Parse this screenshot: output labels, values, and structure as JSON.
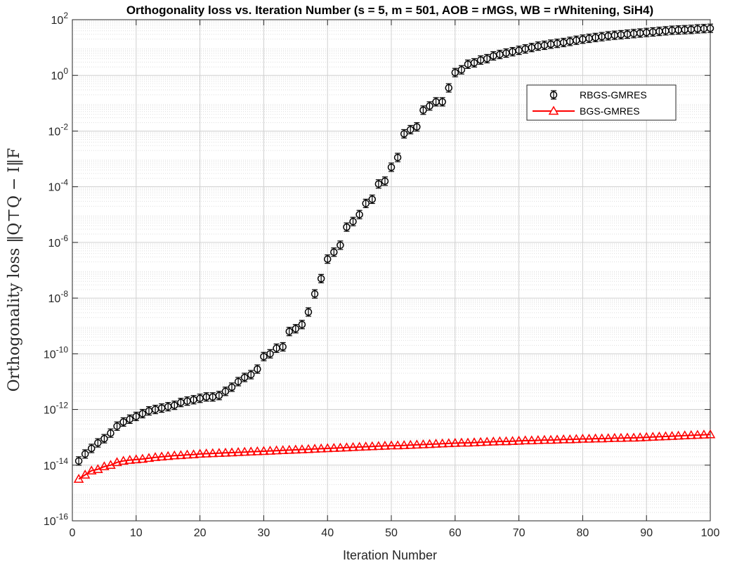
{
  "chart_data": {
    "type": "line",
    "title": "Orthogonality loss vs. Iteration Number (s = 5, m = 501, AOB = rMGS, WB = rWhitening, SiH4)",
    "xlabel": "Iteration Number",
    "ylabel": "Orthogonality loss ‖Q⊤Q − I‖F",
    "xlim": [
      0,
      100
    ],
    "ylim": [
      1e-16,
      100
    ],
    "yscale": "log",
    "grid": true,
    "legend_position": "top-right",
    "x_ticks": [
      0,
      10,
      20,
      30,
      40,
      50,
      60,
      70,
      80,
      90,
      100
    ],
    "y_ticks": [
      {
        "base": "10",
        "exp": "-16"
      },
      {
        "base": "10",
        "exp": "-14"
      },
      {
        "base": "10",
        "exp": "-12"
      },
      {
        "base": "10",
        "exp": "-10"
      },
      {
        "base": "10",
        "exp": "-8"
      },
      {
        "base": "10",
        "exp": "-6"
      },
      {
        "base": "10",
        "exp": "-4"
      },
      {
        "base": "10",
        "exp": "-2"
      },
      {
        "base": "10",
        "exp": "0"
      },
      {
        "base": "10",
        "exp": "2"
      }
    ],
    "x": [
      1,
      2,
      3,
      4,
      5,
      6,
      7,
      8,
      9,
      10,
      11,
      12,
      13,
      14,
      15,
      16,
      17,
      18,
      19,
      20,
      21,
      22,
      23,
      24,
      25,
      26,
      27,
      28,
      29,
      30,
      31,
      32,
      33,
      34,
      35,
      36,
      37,
      38,
      39,
      40,
      41,
      42,
      43,
      44,
      45,
      46,
      47,
      48,
      49,
      50,
      51,
      52,
      53,
      54,
      55,
      56,
      57,
      58,
      59,
      60,
      61,
      62,
      63,
      64,
      65,
      66,
      67,
      68,
      69,
      70,
      71,
      72,
      73,
      74,
      75,
      76,
      77,
      78,
      79,
      80,
      81,
      82,
      83,
      84,
      85,
      86,
      87,
      88,
      89,
      90,
      91,
      92,
      93,
      94,
      95,
      96,
      97,
      98,
      99,
      100
    ],
    "series": [
      {
        "name": "RBGS-GMRES",
        "color": "#000000",
        "marker": "circle-errorbar",
        "log10_values": [
          -13.85,
          -13.6,
          -13.4,
          -13.2,
          -13.05,
          -12.85,
          -12.6,
          -12.45,
          -12.35,
          -12.25,
          -12.15,
          -12.05,
          -12.0,
          -11.95,
          -11.9,
          -11.85,
          -11.75,
          -11.7,
          -11.65,
          -11.6,
          -11.55,
          -11.55,
          -11.5,
          -11.35,
          -11.2,
          -11.0,
          -10.85,
          -10.75,
          -10.55,
          -10.1,
          -10.0,
          -9.8,
          -9.75,
          -9.2,
          -9.1,
          -8.95,
          -8.5,
          -7.85,
          -7.3,
          -6.6,
          -6.35,
          -6.1,
          -5.45,
          -5.25,
          -5.0,
          -4.6,
          -4.45,
          -3.9,
          -3.8,
          -3.3,
          -2.95,
          -2.1,
          -1.95,
          -1.85,
          -1.25,
          -1.1,
          -0.95,
          -0.95,
          -0.45,
          0.1,
          0.2,
          0.4,
          0.45,
          0.55,
          0.6,
          0.7,
          0.75,
          0.8,
          0.85,
          0.9,
          0.95,
          1.0,
          1.05,
          1.08,
          1.12,
          1.15,
          1.18,
          1.22,
          1.26,
          1.3,
          1.33,
          1.36,
          1.39,
          1.42,
          1.44,
          1.46,
          1.48,
          1.5,
          1.52,
          1.54,
          1.56,
          1.58,
          1.6,
          1.62,
          1.63,
          1.64,
          1.65,
          1.67,
          1.68,
          1.69
        ]
      },
      {
        "name": "BGS-GMRES",
        "color": "#ff0000",
        "marker": "triangle",
        "log10_values": [
          -14.5,
          -14.35,
          -14.2,
          -14.15,
          -14.05,
          -14.0,
          -13.9,
          -13.85,
          -13.82,
          -13.8,
          -13.78,
          -13.75,
          -13.72,
          -13.7,
          -13.68,
          -13.66,
          -13.65,
          -13.63,
          -13.62,
          -13.6,
          -13.59,
          -13.58,
          -13.57,
          -13.56,
          -13.55,
          -13.54,
          -13.53,
          -13.52,
          -13.51,
          -13.5,
          -13.49,
          -13.48,
          -13.47,
          -13.46,
          -13.45,
          -13.44,
          -13.43,
          -13.42,
          -13.41,
          -13.4,
          -13.39,
          -13.38,
          -13.37,
          -13.36,
          -13.35,
          -13.34,
          -13.33,
          -13.32,
          -13.31,
          -13.3,
          -13.3,
          -13.29,
          -13.28,
          -13.27,
          -13.26,
          -13.25,
          -13.24,
          -13.23,
          -13.22,
          -13.21,
          -13.2,
          -13.2,
          -13.19,
          -13.18,
          -13.17,
          -13.16,
          -13.15,
          -13.15,
          -13.14,
          -13.13,
          -13.12,
          -13.12,
          -13.11,
          -13.1,
          -13.1,
          -13.09,
          -13.08,
          -13.08,
          -13.07,
          -13.06,
          -13.06,
          -13.05,
          -13.05,
          -13.04,
          -13.03,
          -13.03,
          -13.02,
          -13.02,
          -13.01,
          -13.0,
          -12.99,
          -12.98,
          -12.97,
          -12.96,
          -12.95,
          -12.94,
          -12.93,
          -12.92,
          -12.91,
          -12.9
        ]
      }
    ]
  }
}
